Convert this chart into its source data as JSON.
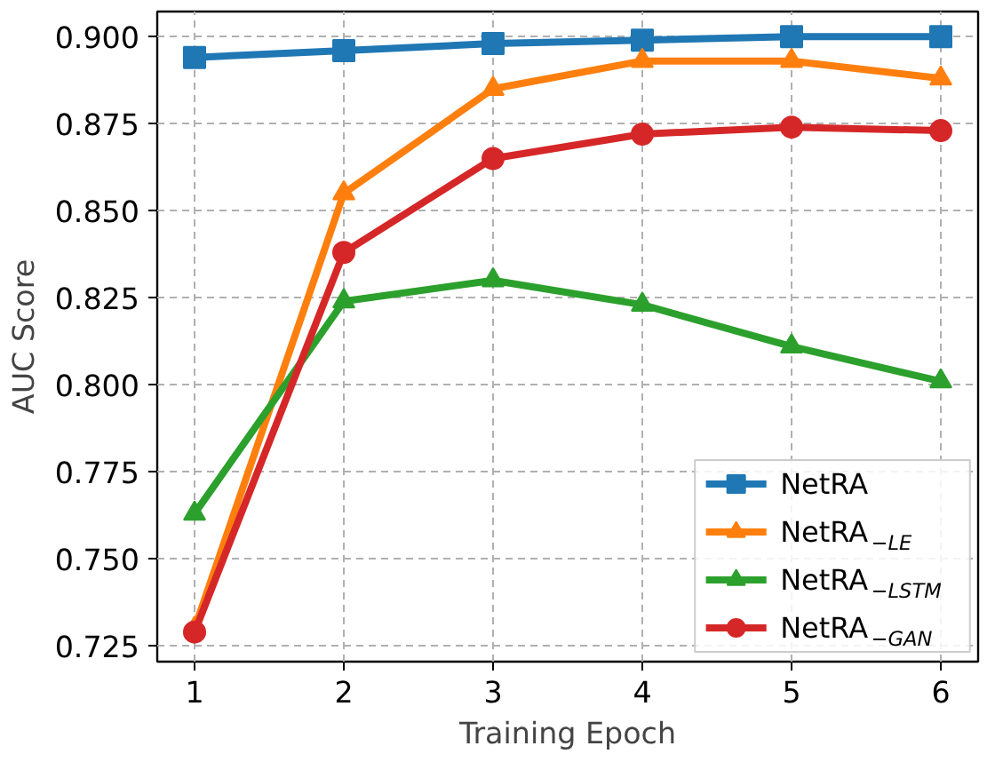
{
  "chart_data": {
    "type": "line",
    "xlabel": "Training Epoch",
    "ylabel": "AUC Score",
    "x": [
      1,
      2,
      3,
      4,
      5,
      6
    ],
    "xlim": [
      0.75,
      6.25
    ],
    "xticks": [
      1,
      2,
      3,
      4,
      5,
      6
    ],
    "ylim": [
      0.7205,
      0.9072
    ],
    "yticks": [
      {
        "value": 0.725,
        "label": "0.725"
      },
      {
        "value": 0.75,
        "label": "0.750"
      },
      {
        "value": 0.775,
        "label": "0.775"
      },
      {
        "value": 0.8,
        "label": "0.800"
      },
      {
        "value": 0.825,
        "label": "0.825"
      },
      {
        "value": 0.85,
        "label": "0.850"
      },
      {
        "value": 0.875,
        "label": "0.875"
      },
      {
        "value": 0.9,
        "label": "0.900"
      }
    ],
    "grid": true,
    "legend": "bottom right",
    "line_style": "solid",
    "series": [
      {
        "name": "NetRA",
        "color": "#1f77b4",
        "marker": "square",
        "values": [
          0.894,
          0.896,
          0.898,
          0.899,
          0.9,
          0.9
        ]
      },
      {
        "name": "NetRA$_{−LE}$",
        "color": "#ff7f0e",
        "marker": "triangle",
        "values": [
          0.73,
          0.855,
          0.885,
          0.893,
          0.893,
          0.888
        ]
      },
      {
        "name": "NetRA$_{−LSTM}$",
        "color": "#2ca02c",
        "marker": "triangle",
        "values": [
          0.763,
          0.824,
          0.83,
          0.823,
          0.811,
          0.801
        ]
      },
      {
        "name": "NetRA$_{−GAN}$",
        "color": "#d62728",
        "marker": "circle",
        "values": [
          0.729,
          0.838,
          0.865,
          0.872,
          0.874,
          0.873
        ]
      }
    ]
  }
}
